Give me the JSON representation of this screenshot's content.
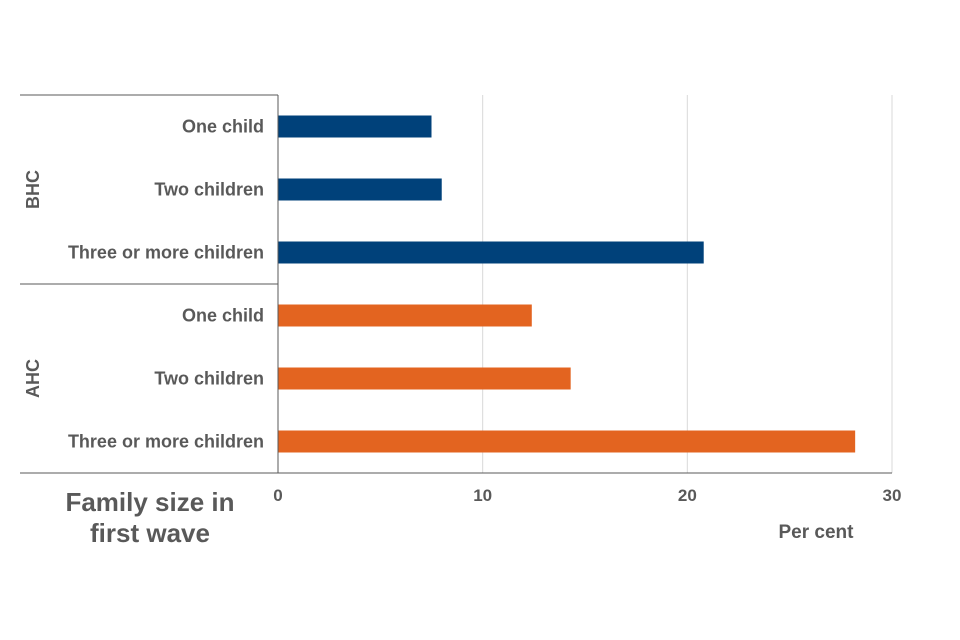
{
  "chart_data": {
    "type": "bar",
    "orientation": "horizontal",
    "groups": [
      {
        "label": "BHC",
        "color": "#00417A",
        "categories": [
          "One child",
          "Two children",
          "Three or more children"
        ],
        "values": [
          7.5,
          8.0,
          20.8
        ]
      },
      {
        "label": "AHC",
        "color": "#E36420",
        "categories": [
          "One child",
          "Two children",
          "Three or more children"
        ],
        "values": [
          12.4,
          14.3,
          28.2
        ]
      }
    ],
    "xlabel": "Per cent",
    "ylabel": "Family size in first wave",
    "xlim": [
      0,
      30
    ],
    "xticks": [
      "0",
      "10",
      "20",
      "30"
    ],
    "grid": true
  }
}
